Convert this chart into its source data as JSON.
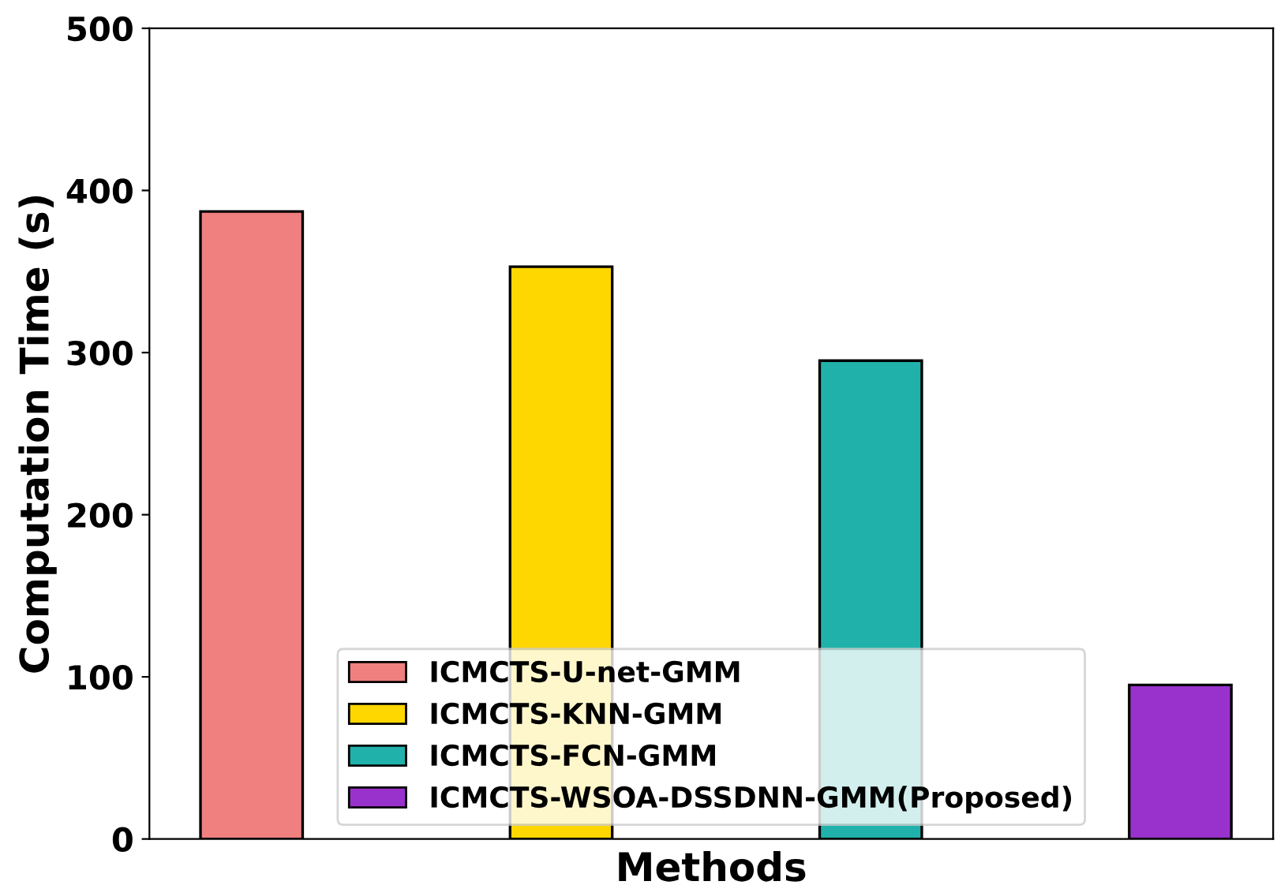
{
  "chart_data": {
    "type": "bar",
    "xlabel": "Methods",
    "ylabel": "Computation Time (s)",
    "categories": [
      null,
      null,
      null,
      null
    ],
    "series": [
      {
        "name": "ICMCTS-U-net-GMM",
        "color": "#f08080",
        "values": [
          387,
          null,
          null,
          null
        ]
      },
      {
        "name": "ICMCTS-KNN-GMM",
        "color": "#ffd700",
        "values": [
          null,
          353,
          null,
          null
        ]
      },
      {
        "name": "ICMCTS-FCN-GMM",
        "color": "#20b2aa",
        "values": [
          null,
          null,
          295,
          null
        ]
      },
      {
        "name": "ICMCTS-WSOA-DSSDNN-GMM(Proposed)",
        "color": "#9932cc",
        "values": [
          null,
          null,
          null,
          95
        ]
      }
    ],
    "ylim": [
      0,
      500
    ],
    "yticks": [
      0,
      100,
      200,
      300,
      400,
      500
    ],
    "grid": false,
    "legend": "bottom"
  }
}
